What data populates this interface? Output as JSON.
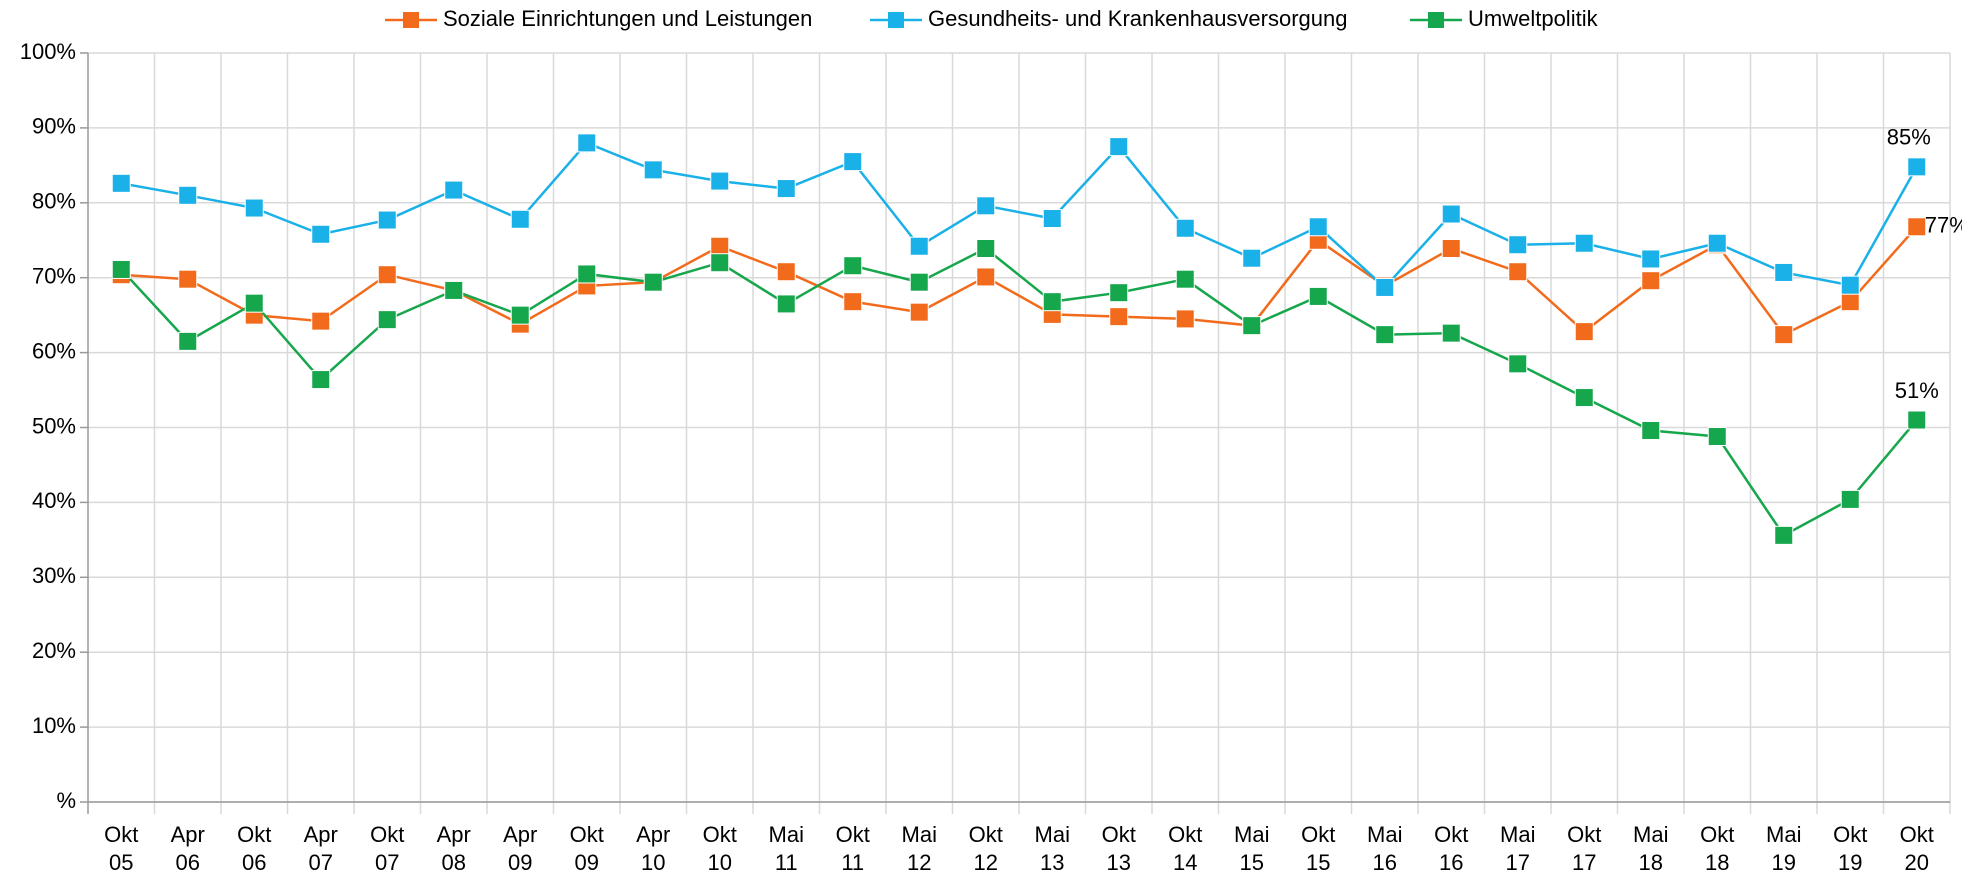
{
  "chart_data": {
    "type": "line",
    "categories": [
      "Okt 05",
      "Apr 06",
      "Okt 06",
      "Apr 07",
      "Okt 07",
      "Apr 08",
      "Apr 09",
      "Okt 09",
      "Apr 10",
      "Okt 10",
      "Mai 11",
      "Okt 11",
      "Mai 12",
      "Okt 12",
      "Mai 13",
      "Okt 13",
      "Okt 14",
      "Mai 15",
      "Okt 15",
      "Mai 16",
      "Okt 16",
      "Mai 17",
      "Okt 17",
      "Mai 18",
      "Okt 18",
      "Mai 19",
      "Okt 19",
      "Okt 20"
    ],
    "series": [
      {
        "name": "Soziale Einrichtungen und Leistungen",
        "color": "#f26b1d",
        "values": [
          70.4,
          69.8,
          65,
          64.2,
          70.4,
          68.3,
          63.8,
          68.9,
          69.4,
          74.2,
          70.8,
          66.8,
          65.4,
          70.1,
          65.1,
          64.8,
          64.5,
          63.6,
          75,
          68.9,
          73.9,
          70.8,
          62.8,
          69.6,
          74.4,
          62.4,
          66.8,
          76.8
        ],
        "value_labels": [
          null,
          null,
          null,
          null,
          null,
          null,
          null,
          null,
          null,
          null,
          null,
          null,
          null,
          null,
          null,
          null,
          null,
          null,
          null,
          null,
          null,
          null,
          null,
          null,
          null,
          null,
          null,
          "77%"
        ]
      },
      {
        "name": "Gesundheits- und Krankenhausversorgung",
        "color": "#1ab0e8",
        "values": [
          82.6,
          81,
          79.3,
          75.8,
          77.7,
          81.7,
          77.8,
          88,
          84.4,
          82.9,
          81.9,
          85.5,
          74.2,
          79.6,
          77.9,
          87.5,
          76.6,
          72.6,
          76.8,
          68.7,
          78.5,
          74.4,
          74.6,
          72.5,
          74.6,
          70.7,
          69,
          84.8
        ],
        "value_labels": [
          null,
          null,
          null,
          null,
          null,
          null,
          null,
          null,
          null,
          null,
          null,
          null,
          null,
          null,
          null,
          null,
          null,
          null,
          null,
          null,
          null,
          null,
          null,
          null,
          null,
          null,
          null,
          "85%"
        ]
      },
      {
        "name": "Umweltpolitik",
        "color": "#16a64c",
        "values": [
          71.1,
          61.5,
          66.6,
          56.4,
          64.4,
          68.3,
          65,
          70.5,
          69.4,
          72,
          66.5,
          71.6,
          69.4,
          73.9,
          66.8,
          68,
          69.8,
          63.6,
          67.5,
          62.4,
          62.6,
          58.5,
          54,
          49.6,
          48.8,
          35.6,
          40.4,
          51
        ],
        "value_labels": [
          null,
          null,
          null,
          null,
          null,
          null,
          null,
          null,
          null,
          null,
          null,
          null,
          null,
          null,
          null,
          null,
          null,
          null,
          null,
          null,
          null,
          null,
          null,
          null,
          null,
          null,
          null,
          "51%"
        ]
      }
    ],
    "ylim": [
      0,
      100
    ],
    "yticks": [
      {
        "value": 0,
        "label": "%"
      },
      {
        "value": 10,
        "label": "10%"
      },
      {
        "value": 20,
        "label": "20%"
      },
      {
        "value": 30,
        "label": "30%"
      },
      {
        "value": 40,
        "label": "40%"
      },
      {
        "value": 50,
        "label": "50%"
      },
      {
        "value": 60,
        "label": "60%"
      },
      {
        "value": 70,
        "label": "70%"
      },
      {
        "value": 80,
        "label": "80%"
      },
      {
        "value": 90,
        "label": "90%"
      },
      {
        "value": 100,
        "label": "100%"
      }
    ],
    "grid": true,
    "legend": "top"
  }
}
